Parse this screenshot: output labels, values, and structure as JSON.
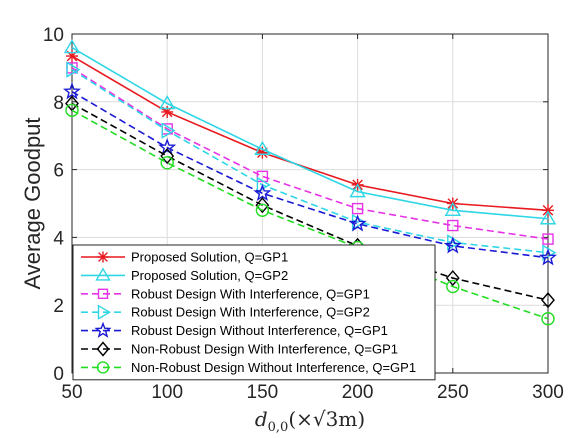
{
  "chart_data": {
    "type": "line",
    "x": [
      50,
      100,
      150,
      200,
      250,
      300
    ],
    "xlim": [
      50,
      300
    ],
    "ylim": [
      0,
      10
    ],
    "xticks": [
      "50",
      "100",
      "150",
      "200",
      "250",
      "300"
    ],
    "yticks": [
      "0",
      "2",
      "4",
      "6",
      "8",
      "10"
    ],
    "ylabel": "Average Goodput",
    "xlabel": {
      "symbol": "d",
      "subscript": "0,0",
      "text": "(×√3m)"
    },
    "grid": true,
    "legend_position": "bottom-left",
    "series": [
      {
        "name": "Proposed Solution, Q=GP1",
        "values": [
          9.35,
          7.7,
          6.5,
          5.55,
          5.0,
          4.8
        ],
        "color": "#e8191f",
        "dash": "solid",
        "marker": "asterisk"
      },
      {
        "name": "Proposed Solution, Q=GP2",
        "values": [
          9.6,
          7.95,
          6.6,
          5.35,
          4.8,
          4.55
        ],
        "color": "#2ed6e6",
        "dash": "solid",
        "marker": "triangle-up"
      },
      {
        "name": "Robust Design With Interference, Q=GP1",
        "values": [
          9.0,
          7.2,
          5.8,
          4.85,
          4.35,
          3.95
        ],
        "color": "#e633e6",
        "dash": "dashed",
        "marker": "square"
      },
      {
        "name": "Robust Design With Interference, Q=GP2",
        "values": [
          8.95,
          7.15,
          5.55,
          4.45,
          3.85,
          3.55
        ],
        "color": "#2ed6e6",
        "dash": "dashed",
        "marker": "triangle-right"
      },
      {
        "name": "Robust Design Without Interference, Q=GP1",
        "values": [
          8.3,
          6.65,
          5.3,
          4.4,
          3.75,
          3.4
        ],
        "color": "#1a1ad6",
        "dash": "dashed",
        "marker": "pentagram"
      },
      {
        "name": "Non-Robust Design With Interference, Q=GP1",
        "values": [
          7.95,
          6.4,
          4.95,
          3.75,
          2.8,
          2.15
        ],
        "color": "#000000",
        "dash": "dashed",
        "marker": "diamond"
      },
      {
        "name": "Non-Robust Design Without Interference, Q=GP1",
        "values": [
          7.75,
          6.2,
          4.8,
          3.7,
          2.55,
          1.6
        ],
        "color": "#22dd22",
        "dash": "dashed",
        "marker": "circle"
      }
    ]
  }
}
